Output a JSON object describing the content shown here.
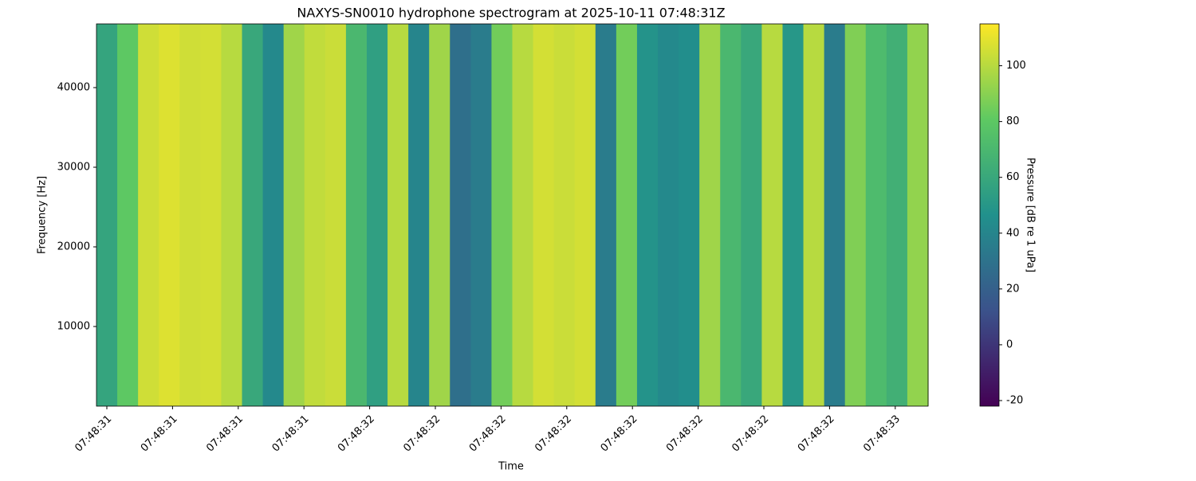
{
  "chart_data": {
    "type": "spectrogram",
    "title": "NAXYS-SN0010 hydrophone spectrogram at 2025-10-11 07:48:31Z",
    "x_label": "Time",
    "y_label": "Frequency [Hz]",
    "xticks": [
      "07:48:31",
      "07:48:31",
      "07:48:31",
      "07:48:31",
      "07:48:32",
      "07:48:32",
      "07:48:32",
      "07:48:32",
      "07:48:32",
      "07:48:32",
      "07:48:32",
      "07:48:32",
      "07:48:33"
    ],
    "ylim": [
      0,
      48000
    ],
    "yticks": [
      10000,
      20000,
      30000,
      40000
    ],
    "values": [
      58,
      80,
      105,
      108,
      105,
      106,
      100,
      60,
      42,
      95,
      102,
      104,
      70,
      55,
      100,
      40,
      95,
      28,
      35,
      85,
      100,
      106,
      104,
      106,
      35,
      85,
      48,
      42,
      45,
      95,
      70,
      60,
      100,
      50,
      100,
      35,
      88,
      72,
      65,
      92
    ],
    "colormap": "viridis",
    "colorbar_label": "Pressure [dB re 1 uPa]",
    "clim": [
      -22,
      115
    ],
    "cticks": [
      -20,
      0,
      20,
      40,
      60,
      80,
      100
    ]
  }
}
